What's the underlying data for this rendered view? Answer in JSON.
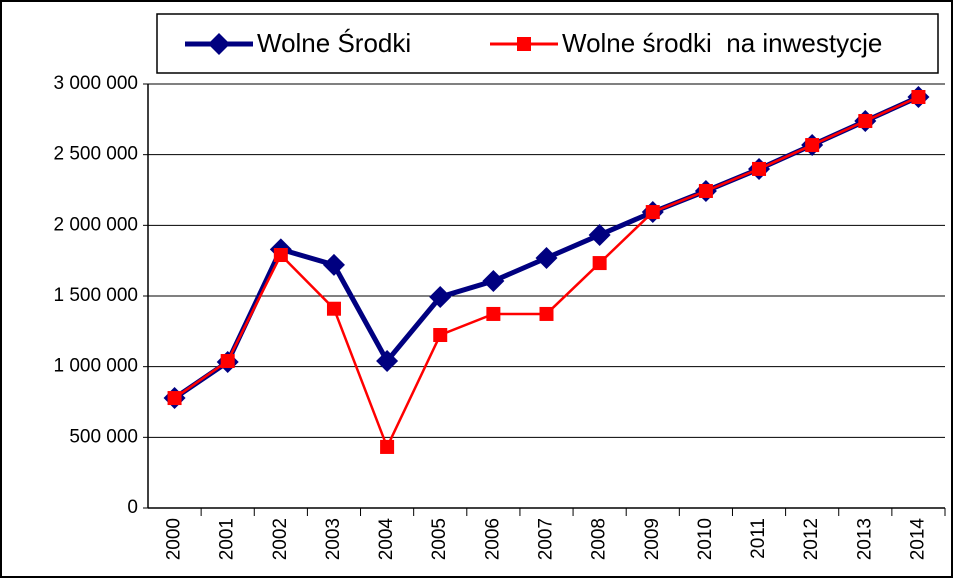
{
  "chart_data": {
    "type": "line",
    "categories": [
      "2000",
      "2001",
      "2002",
      "2003",
      "2004",
      "2005",
      "2006",
      "2007",
      "2008",
      "2009",
      "2010",
      "2011",
      "2012",
      "2013",
      "2014"
    ],
    "series": [
      {
        "name": "Wolne Środki",
        "color": "#000080",
        "marker": "diamond",
        "values": [
          778000,
          1033000,
          1830000,
          1720000,
          1040000,
          1493000,
          1606000,
          1769000,
          1932000,
          2094000,
          2243000,
          2399000,
          2568000,
          2738000,
          2908000
        ]
      },
      {
        "name": "Wolne środki  na inwestycje",
        "color": "#ff0000",
        "marker": "square",
        "values": [
          778000,
          1040000,
          1790000,
          1410000,
          432000,
          1224000,
          1373000,
          1373000,
          1733000,
          2094000,
          2243000,
          2399000,
          2568000,
          2738000,
          2908000
        ]
      }
    ],
    "ylim": [
      0,
      3000000
    ],
    "yticks": [
      0,
      {
        "value": 500000,
        "label": "500 000"
      },
      {
        "value": 1000000,
        "label": "1 000 000"
      },
      {
        "value": 1500000,
        "label": "1 500 000"
      },
      {
        "value": 2000000,
        "label": "2 000 000"
      },
      {
        "value": 2500000,
        "label": "2 500 000"
      },
      {
        "value": 3000000,
        "label": "3 000 000"
      }
    ],
    "grid": true,
    "legend": "top"
  }
}
